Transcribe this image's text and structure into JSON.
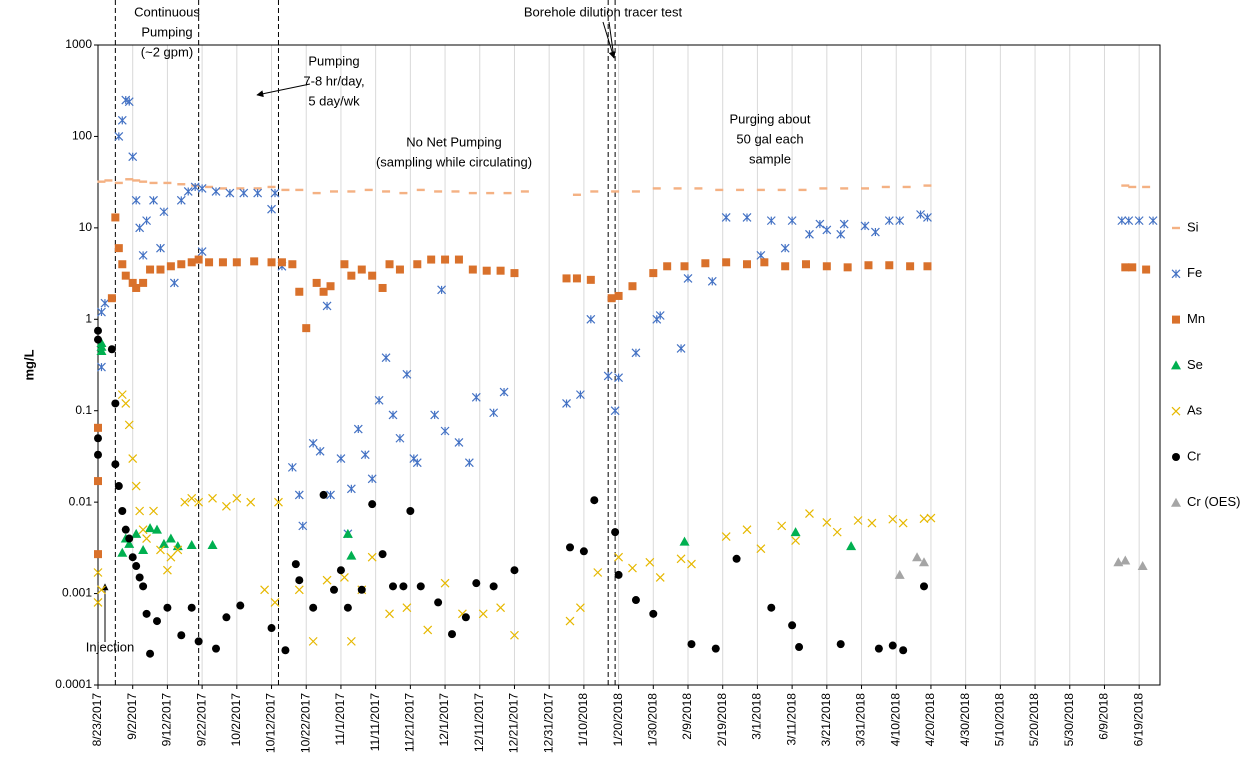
{
  "chart_data": {
    "type": "scatter",
    "y_label": "mg/L",
    "log_y": true,
    "grid": "x",
    "ylim": [
      0.0001,
      1000
    ],
    "yticks": [
      0.0001,
      0.001,
      0.01,
      0.1,
      1,
      10,
      100,
      1000
    ],
    "xlim": [
      "8/23/2017",
      "6/25/2018"
    ],
    "xticks": [
      "8/23/2017",
      "9/2/2017",
      "9/12/2017",
      "9/22/2017",
      "10/2/2017",
      "10/12/2017",
      "10/22/2017",
      "11/1/2017",
      "11/11/2017",
      "11/21/2017",
      "12/1/2017",
      "12/11/2017",
      "12/21/2017",
      "12/31/2017",
      "1/10/2018",
      "1/20/2018",
      "1/30/2018",
      "2/9/2018",
      "2/19/2018",
      "3/1/2018",
      "3/11/2018",
      "3/21/2018",
      "3/31/2018",
      "4/10/2018",
      "4/20/2018",
      "4/30/2018",
      "5/10/2018",
      "5/20/2018",
      "5/30/2018",
      "6/9/2018",
      "6/19/2018"
    ],
    "vlines": [
      "8/28/2017",
      "9/21/2017",
      "10/14/2017",
      "1/17/2018",
      "1/19/2018"
    ],
    "annotations": [
      {
        "lines": [
          "Continuous",
          "Pumping",
          "(~2 gpm)"
        ]
      },
      {
        "lines": [
          "Pumping",
          "7-8 hr/day,",
          "5 day/wk"
        ]
      },
      {
        "lines": [
          "No Net Pumping",
          "(sampling while circulating)"
        ]
      },
      {
        "lines": [
          "Borehole dilution tracer test"
        ]
      },
      {
        "lines": [
          "Purging about",
          "50 gal each",
          "sample"
        ]
      },
      {
        "lines": [
          "Injection"
        ]
      }
    ],
    "series": [
      {
        "name": "Si",
        "color": "#f4b183",
        "marker": "dash",
        "x": [
          "8/24/2017",
          "8/26/2017",
          "8/29/2017",
          "9/1/2017",
          "9/3/2017",
          "9/5/2017",
          "9/8/2017",
          "9/12/2017",
          "9/16/2017",
          "9/20/2017",
          "9/24/2017",
          "9/28/2017",
          "10/3/2017",
          "10/8/2017",
          "10/12/2017",
          "10/16/2017",
          "10/20/2017",
          "10/25/2017",
          "10/30/2017",
          "11/4/2017",
          "11/9/2017",
          "11/14/2017",
          "11/19/2017",
          "11/24/2017",
          "11/29/2017",
          "12/4/2017",
          "12/9/2017",
          "12/14/2017",
          "12/19/2017",
          "12/24/2017",
          "1/8/2018",
          "1/13/2018",
          "1/19/2018",
          "1/25/2018",
          "1/31/2018",
          "2/6/2018",
          "2/12/2018",
          "2/18/2018",
          "2/24/2018",
          "3/2/2018",
          "3/8/2018",
          "3/14/2018",
          "3/20/2018",
          "3/26/2018",
          "4/1/2018",
          "4/7/2018",
          "4/13/2018",
          "4/19/2018",
          "6/15/2018",
          "6/17/2018",
          "6/21/2018"
        ],
        "values": [
          32,
          33,
          31,
          34,
          33,
          32,
          31,
          31,
          30,
          29,
          28,
          27,
          27,
          27,
          28,
          26,
          26,
          24,
          25,
          25,
          26,
          25,
          24,
          26,
          25,
          25,
          24,
          24,
          24,
          25,
          23,
          25,
          25,
          25,
          27,
          27,
          27,
          26,
          26,
          26,
          26,
          26,
          27,
          27,
          27,
          28,
          28,
          29,
          29,
          28,
          28
        ]
      },
      {
        "name": "Fe",
        "color": "#4472c4",
        "marker": "asterisk",
        "x": [
          "8/24/2017",
          "8/24/2017",
          "8/25/2017",
          "8/29/2017",
          "8/30/2017",
          "8/31/2017",
          "9/1/2017",
          "9/2/2017",
          "9/3/2017",
          "9/4/2017",
          "9/5/2017",
          "9/6/2017",
          "9/8/2017",
          "9/10/2017",
          "9/11/2017",
          "9/14/2017",
          "9/16/2017",
          "9/18/2017",
          "9/20/2017",
          "9/22/2017",
          "9/22/2017",
          "9/26/2017",
          "9/30/2017",
          "10/4/2017",
          "10/8/2017",
          "10/12/2017",
          "10/13/2017",
          "10/15/2017",
          "10/18/2017",
          "10/20/2017",
          "10/21/2017",
          "10/24/2017",
          "10/26/2017",
          "10/28/2017",
          "10/29/2017",
          "11/1/2017",
          "11/3/2017",
          "11/4/2017",
          "11/6/2017",
          "11/8/2017",
          "11/10/2017",
          "11/12/2017",
          "11/14/2017",
          "11/16/2017",
          "11/18/2017",
          "11/20/2017",
          "11/22/2017",
          "11/23/2017",
          "11/28/2017",
          "11/30/2017",
          "12/1/2017",
          "12/5/2017",
          "12/8/2017",
          "12/10/2017",
          "12/15/2017",
          "12/18/2017",
          "1/5/2018",
          "1/9/2018",
          "1/12/2018",
          "1/17/2018",
          "1/19/2018",
          "1/20/2018",
          "1/25/2018",
          "1/31/2018",
          "2/1/2018",
          "2/7/2018",
          "2/9/2018",
          "2/16/2018",
          "2/20/2018",
          "2/26/2018",
          "3/2/2018",
          "3/5/2018",
          "3/9/2018",
          "3/11/2018",
          "3/16/2018",
          "3/19/2018",
          "3/21/2018",
          "3/25/2018",
          "3/26/2018",
          "4/1/2018",
          "4/4/2018",
          "4/8/2018",
          "4/11/2018",
          "4/17/2018",
          "4/19/2018",
          "6/14/2018",
          "6/16/2018",
          "6/19/2018",
          "6/23/2018"
        ],
        "values": [
          1.2,
          0.3,
          1.5,
          100,
          150,
          250,
          240,
          60,
          20,
          10,
          5,
          12,
          20,
          6,
          15,
          2.5,
          20,
          25,
          28,
          27,
          5.5,
          25,
          24,
          24,
          24,
          16,
          24,
          3.8,
          0.024,
          0.012,
          0.0055,
          0.044,
          0.036,
          1.4,
          0.012,
          0.03,
          0.0045,
          0.014,
          0.063,
          0.033,
          0.018,
          0.13,
          0.38,
          0.09,
          0.05,
          0.25,
          0.03,
          0.027,
          0.09,
          2.1,
          0.06,
          0.045,
          0.027,
          0.14,
          0.095,
          0.16,
          0.12,
          0.15,
          1.0,
          0.24,
          0.1,
          0.23,
          0.43,
          1.0,
          1.1,
          0.48,
          2.8,
          2.6,
          13,
          13,
          5,
          12,
          6,
          12,
          8.5,
          11,
          9.5,
          8.5,
          11,
          10.5,
          9,
          12,
          12,
          14,
          13,
          12,
          12,
          12,
          12
        ]
      },
      {
        "name": "Mn",
        "color": "#d9712b",
        "marker": "square",
        "x": [
          "8/23/2017",
          "8/23/2017",
          "8/23/2017",
          "8/27/2017",
          "8/28/2017",
          "8/29/2017",
          "8/30/2017",
          "8/31/2017",
          "9/2/2017",
          "9/3/2017",
          "9/5/2017",
          "9/7/2017",
          "9/10/2017",
          "9/13/2017",
          "9/16/2017",
          "9/19/2017",
          "9/21/2017",
          "9/24/2017",
          "9/28/2017",
          "10/2/2017",
          "10/7/2017",
          "10/12/2017",
          "10/15/2017",
          "10/18/2017",
          "10/20/2017",
          "10/22/2017",
          "10/25/2017",
          "10/27/2017",
          "10/29/2017",
          "11/2/2017",
          "11/4/2017",
          "11/7/2017",
          "11/10/2017",
          "11/13/2017",
          "11/15/2017",
          "11/18/2017",
          "11/23/2017",
          "11/27/2017",
          "12/1/2017",
          "12/5/2017",
          "12/9/2017",
          "12/13/2017",
          "12/17/2017",
          "12/21/2017",
          "1/5/2018",
          "1/8/2018",
          "1/12/2018",
          "1/18/2018",
          "1/20/2018",
          "1/24/2018",
          "1/30/2018",
          "2/3/2018",
          "2/8/2018",
          "2/14/2018",
          "2/20/2018",
          "2/26/2018",
          "3/3/2018",
          "3/9/2018",
          "3/15/2018",
          "3/21/2018",
          "3/27/2018",
          "4/2/2018",
          "4/8/2018",
          "4/14/2018",
          "4/19/2018",
          "6/15/2018",
          "6/17/2018",
          "6/21/2018"
        ],
        "values": [
          0.065,
          0.017,
          0.0027,
          1.7,
          13,
          6,
          4,
          3,
          2.5,
          2.2,
          2.5,
          3.5,
          3.5,
          3.8,
          4,
          4.2,
          4.5,
          4.2,
          4.2,
          4.2,
          4.3,
          4.2,
          4.2,
          4,
          2,
          0.8,
          2.5,
          2,
          2.3,
          4,
          3,
          3.5,
          3,
          2.2,
          4,
          3.5,
          4,
          4.5,
          4.5,
          4.5,
          3.5,
          3.4,
          3.4,
          3.2,
          2.8,
          2.8,
          2.7,
          1.7,
          1.8,
          2.3,
          3.2,
          3.8,
          3.8,
          4.1,
          4.2,
          4,
          4.2,
          3.8,
          4,
          3.8,
          3.7,
          3.9,
          3.9,
          3.8,
          3.8,
          3.7,
          3.7,
          3.5
        ]
      },
      {
        "name": "Se",
        "color": "#00b050",
        "marker": "triangle",
        "x": [
          "8/24/2017",
          "8/24/2017",
          "8/24/2017",
          "8/30/2017",
          "8/31/2017",
          "9/1/2017",
          "9/3/2017",
          "9/5/2017",
          "9/7/2017",
          "9/9/2017",
          "9/11/2017",
          "9/13/2017",
          "9/15/2017",
          "9/19/2017",
          "9/25/2017",
          "11/3/2017",
          "11/4/2017",
          "2/8/2018",
          "3/12/2018",
          "3/28/2018"
        ],
        "values": [
          0.55,
          0.5,
          0.45,
          0.0028,
          0.004,
          0.0035,
          0.0045,
          0.003,
          0.0052,
          0.005,
          0.0035,
          0.004,
          0.0033,
          0.0034,
          0.0034,
          0.0045,
          0.0026,
          0.0037,
          0.0047,
          0.0033
        ]
      },
      {
        "name": "As",
        "color": "#e6b800",
        "marker": "x",
        "x": [
          "8/23/2017",
          "8/23/2017",
          "8/24/2017",
          "8/30/2017",
          "8/31/2017",
          "9/1/2017",
          "9/2/2017",
          "9/3/2017",
          "9/4/2017",
          "9/5/2017",
          "9/6/2017",
          "9/8/2017",
          "9/10/2017",
          "9/12/2017",
          "9/13/2017",
          "9/15/2017",
          "9/17/2017",
          "9/19/2017",
          "9/21/2017",
          "9/25/2017",
          "9/29/2017",
          "10/2/2017",
          "10/6/2017",
          "10/10/2017",
          "10/14/2017",
          "10/13/2017",
          "10/20/2017",
          "10/24/2017",
          "10/28/2017",
          "11/2/2017",
          "11/4/2017",
          "11/7/2017",
          "11/10/2017",
          "11/15/2017",
          "11/20/2017",
          "11/26/2017",
          "12/1/2017",
          "12/6/2017",
          "12/12/2017",
          "12/17/2017",
          "12/21/2017",
          "1/6/2018",
          "1/9/2018",
          "1/14/2018",
          "1/20/2018",
          "1/24/2018",
          "1/29/2018",
          "2/1/2018",
          "2/7/2018",
          "2/10/2018",
          "2/20/2018",
          "2/26/2018",
          "3/2/2018",
          "3/8/2018",
          "3/12/2018",
          "3/16/2018",
          "3/21/2018",
          "3/24/2018",
          "3/30/2018",
          "4/3/2018",
          "4/9/2018",
          "4/12/2018",
          "4/18/2018",
          "4/20/2018"
        ],
        "values": [
          0.0017,
          0.0008,
          0.0011,
          0.15,
          0.12,
          0.07,
          0.03,
          0.015,
          0.008,
          0.005,
          0.004,
          0.008,
          0.003,
          0.0018,
          0.0025,
          0.003,
          0.01,
          0.011,
          0.01,
          0.011,
          0.009,
          0.011,
          0.01,
          0.0011,
          0.01,
          0.0008,
          0.0011,
          0.0003,
          0.0014,
          0.0015,
          0.0003,
          0.0011,
          0.0025,
          0.0006,
          0.0007,
          0.0004,
          0.0013,
          0.0006,
          0.0006,
          0.0007,
          0.00035,
          0.0005,
          0.0007,
          0.0017,
          0.0025,
          0.0019,
          0.0022,
          0.0015,
          0.0024,
          0.0021,
          0.0042,
          0.005,
          0.0031,
          0.0055,
          0.0038,
          0.0075,
          0.006,
          0.0047,
          0.0063,
          0.0059,
          0.0065,
          0.0059,
          0.0066,
          0.0067
        ]
      },
      {
        "name": "Cr",
        "color": "#000000",
        "marker": "circle",
        "x": [
          "8/23/2017",
          "8/23/2017",
          "8/23/2017",
          "8/23/2017",
          "8/27/2017",
          "8/28/2017",
          "8/28/2017",
          "8/29/2017",
          "8/30/2017",
          "8/31/2017",
          "9/1/2017",
          "9/2/2017",
          "9/3/2017",
          "9/4/2017",
          "9/5/2017",
          "9/6/2017",
          "9/7/2017",
          "9/9/2017",
          "9/12/2017",
          "9/16/2017",
          "9/19/2017",
          "9/21/2017",
          "9/26/2017",
          "9/29/2017",
          "10/3/2017",
          "10/12/2017",
          "10/16/2017",
          "10/19/2017",
          "10/20/2017",
          "10/24/2017",
          "10/27/2017",
          "10/30/2017",
          "11/1/2017",
          "11/3/2017",
          "11/7/2017",
          "11/10/2017",
          "11/13/2017",
          "11/16/2017",
          "11/19/2017",
          "11/21/2017",
          "11/24/2017",
          "11/29/2017",
          "12/3/2017",
          "12/7/2017",
          "12/10/2017",
          "12/15/2017",
          "12/21/2017",
          "1/6/2018",
          "1/10/2018",
          "1/13/2018",
          "1/19/2018",
          "1/20/2018",
          "1/25/2018",
          "1/30/2018",
          "2/10/2018",
          "2/17/2018",
          "2/23/2018",
          "3/5/2018",
          "3/11/2018",
          "3/13/2018",
          "3/25/2018",
          "4/5/2018",
          "4/9/2018",
          "4/12/2018",
          "4/18/2018"
        ],
        "values": [
          0.75,
          0.6,
          0.033,
          0.05,
          0.47,
          0.12,
          0.026,
          0.015,
          0.008,
          0.005,
          0.004,
          0.0025,
          0.002,
          0.0015,
          0.0012,
          0.0006,
          0.00022,
          0.0005,
          0.0007,
          0.00035,
          0.0007,
          0.0003,
          0.00025,
          0.00055,
          0.00074,
          0.00042,
          0.00024,
          0.0021,
          0.0014,
          0.0007,
          0.012,
          0.0011,
          0.0018,
          0.0007,
          0.0011,
          0.0095,
          0.0027,
          0.0012,
          0.0012,
          0.008,
          0.0012,
          0.0008,
          0.00036,
          0.00055,
          0.0013,
          0.0012,
          0.0018,
          0.0032,
          0.0029,
          0.0105,
          0.0047,
          0.0016,
          0.00085,
          0.0006,
          0.00028,
          0.00025,
          0.0024,
          0.0007,
          0.00045,
          0.00026,
          0.00028,
          0.00025,
          0.00027,
          0.00024,
          0.0012
        ]
      },
      {
        "name": "Cr (OES)",
        "color": "#a5a5a5",
        "marker": "triangle",
        "x": [
          "4/11/2018",
          "4/16/2018",
          "4/18/2018",
          "6/13/2018",
          "6/15/2018",
          "6/20/2018"
        ],
        "values": [
          0.0016,
          0.0025,
          0.0022,
          0.0022,
          0.0023,
          0.002
        ]
      }
    ]
  }
}
